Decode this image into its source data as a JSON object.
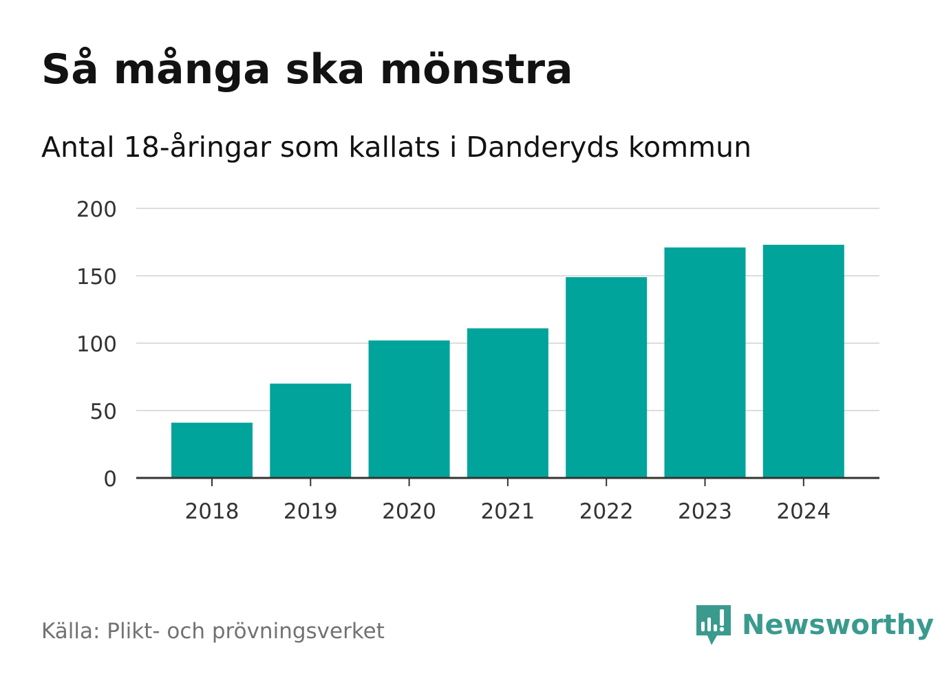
{
  "title": "Så många ska mönstra",
  "subtitle": "Antal 18-åringar som kallats i Danderyds kommun",
  "source": "Källa: Plikt- och prövningsverket",
  "brand": {
    "name": "Newsworthy",
    "color": "#3a9a8e",
    "icon": "newsworthy-logo-icon"
  },
  "colors": {
    "bar": "#00a49a",
    "grid": "#dcdcdc",
    "axis": "#333333",
    "text": "#333333"
  },
  "chart_data": {
    "type": "bar",
    "title": "Så många ska mönstra",
    "subtitle": "Antal 18-åringar som kallats i Danderyds kommun",
    "categories": [
      "2018",
      "2019",
      "2020",
      "2021",
      "2022",
      "2023",
      "2024"
    ],
    "values": [
      41,
      70,
      102,
      111,
      149,
      171,
      173
    ],
    "xlabel": "",
    "ylabel": "",
    "ylim": [
      0,
      200
    ],
    "yticks": [
      0,
      50,
      100,
      150,
      200
    ],
    "grid": true
  }
}
